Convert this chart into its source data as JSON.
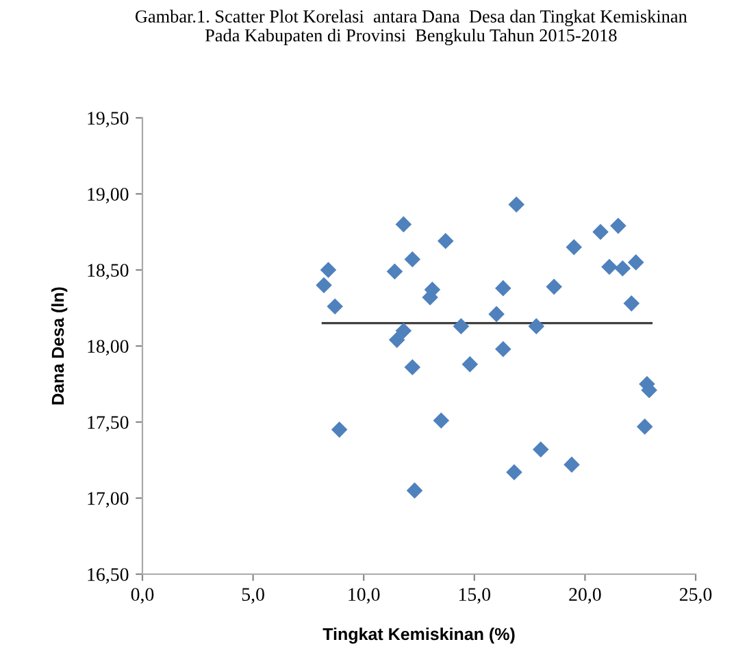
{
  "chart_data": {
    "type": "scatter",
    "title": "Gambar.1. Scatter Plot Korelasi  antara Dana  Desa dan Tingkat Kemiskinan\nPada Kabupaten di Provinsi  Bengkulu Tahun 2015-2018",
    "xlabel": "Tingkat Kemiskinan (%)",
    "ylabel": "Dana Desa (ln)",
    "xlim": [
      0,
      25
    ],
    "xticks": [
      {
        "value": 0,
        "label": "0,0"
      },
      {
        "value": 5,
        "label": "5,0"
      },
      {
        "value": 10,
        "label": "10,0"
      },
      {
        "value": 15,
        "label": "15,0"
      },
      {
        "value": 20,
        "label": "20,0"
      },
      {
        "value": 25,
        "label": "25,0"
      }
    ],
    "ylim": [
      16.5,
      19.5
    ],
    "yticks": [
      {
        "value": 16.5,
        "label": "16,50"
      },
      {
        "value": 17,
        "label": "17,00"
      },
      {
        "value": 17.5,
        "label": "17,50"
      },
      {
        "value": 18,
        "label": "18,00"
      },
      {
        "value": 18.5,
        "label": "18,50"
      },
      {
        "value": 19,
        "label": "19,00"
      },
      {
        "value": 19.5,
        "label": "19,50"
      }
    ],
    "grid": false,
    "marker": "diamond",
    "series": [
      {
        "color": "#4f81bd",
        "x": [
          8.2,
          8.4,
          8.7,
          8.9,
          11.4,
          11.8,
          11.5,
          11.8,
          12.2,
          12.2,
          12.3,
          13.0,
          13.1,
          13.7,
          13.5,
          14.4,
          14.8,
          16.0,
          16.3,
          16.3,
          16.9,
          16.8,
          17.8,
          18.0,
          18.6,
          19.4,
          19.5,
          20.7,
          21.1,
          21.5,
          21.7,
          22.3,
          22.1,
          22.8,
          22.9,
          22.7
        ],
        "values": [
          18.4,
          18.5,
          18.26,
          17.45,
          18.49,
          18.8,
          18.04,
          18.1,
          18.57,
          17.86,
          17.05,
          18.32,
          18.37,
          18.69,
          17.51,
          18.13,
          17.88,
          18.21,
          18.38,
          17.98,
          18.93,
          17.17,
          18.13,
          17.32,
          18.39,
          17.22,
          18.65,
          18.75,
          18.52,
          18.79,
          18.51,
          18.55,
          18.28,
          17.75,
          17.71,
          17.47
        ]
      },
      {
        "type": "line",
        "color": "#404040",
        "x": [
          8.15,
          23.0
        ],
        "values": [
          18.15,
          18.15
        ],
        "marker": "none"
      }
    ]
  }
}
